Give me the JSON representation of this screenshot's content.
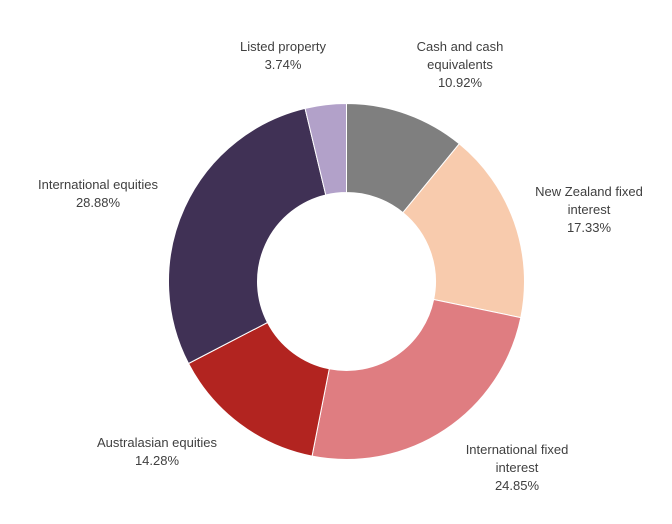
{
  "chart_data": {
    "type": "pie",
    "subtype": "donut",
    "title": "",
    "legend_position": "none",
    "labels_position": "outside",
    "background": "#ffffff",
    "label_text_color": "#404040",
    "segment_border_color": "#ffffff",
    "start_angle_deg": 0,
    "direction": "clockwise",
    "inner_radius_ratio": 0.5,
    "categories": [
      "Cash and cash equivalents",
      "New Zealand fixed interest",
      "International fixed interest",
      "Australasian equities",
      "International equities",
      "Listed property"
    ],
    "values": [
      10.92,
      17.33,
      24.85,
      14.28,
      28.88,
      3.74
    ],
    "segments": [
      {
        "id": "cash-and-cash-equivalents",
        "label": "Cash and cash equivalents",
        "value": 10.92,
        "display": "10.92%",
        "color": "#7f7f7f"
      },
      {
        "id": "new-zealand-fixed-interest",
        "label": "New Zealand fixed interest",
        "value": 17.33,
        "display": "17.33%",
        "color": "#f8cbad"
      },
      {
        "id": "international-fixed-interest",
        "label": "International fixed interest",
        "value": 24.85,
        "display": "24.85%",
        "color": "#df7d81"
      },
      {
        "id": "australasian-equities",
        "label": "Australasian equities",
        "value": 14.28,
        "display": "14.28%",
        "color": "#b22420"
      },
      {
        "id": "international-equities",
        "label": "International equities",
        "value": 28.88,
        "display": "28.88%",
        "color": "#403155"
      },
      {
        "id": "listed-property",
        "label": "Listed property",
        "value": 3.74,
        "display": "3.74%",
        "color": "#b2a1c9"
      }
    ]
  }
}
